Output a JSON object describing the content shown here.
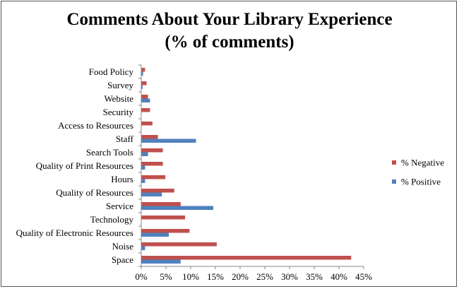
{
  "chart_data": {
    "type": "bar",
    "orientation": "horizontal",
    "title": "Comments About Your Library Experience",
    "subtitle": "(% of comments)",
    "categories": [
      "Food Policy",
      "Survey",
      "Website",
      "Security",
      "Access to Resources",
      "Staff",
      "Search Tools",
      "Quality of Print Resources",
      "Hours",
      "Quality of Resources",
      "Service",
      "Technology",
      "Quality of Electronic Resources",
      "Noise",
      "Space"
    ],
    "series": [
      {
        "name": "% Negative",
        "color": "#c0504d",
        "values": [
          0.7,
          1.0,
          1.3,
          1.7,
          2.2,
          3.3,
          4.3,
          4.3,
          4.8,
          6.6,
          7.9,
          8.8,
          9.7,
          15.2,
          42.4
        ]
      },
      {
        "name": "% Positive",
        "color": "#4f81bd",
        "values": [
          0.3,
          0.2,
          1.7,
          0.0,
          0.0,
          11.0,
          1.3,
          0.7,
          0.7,
          4.1,
          14.5,
          0.0,
          5.5,
          0.7,
          7.9
        ]
      }
    ],
    "xlim": [
      0,
      45
    ],
    "xticks": [
      "0%",
      "5%",
      "10%",
      "15%",
      "20%",
      "25%",
      "30%",
      "35%",
      "40%",
      "45%"
    ],
    "legend_position": "right",
    "grid": false
  }
}
